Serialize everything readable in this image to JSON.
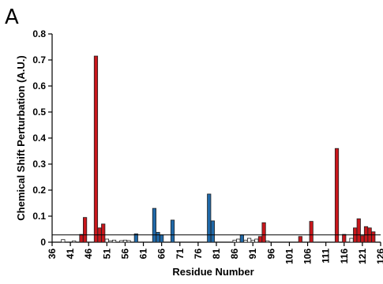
{
  "panel_label": "A",
  "chart_data": {
    "type": "bar",
    "xlabel": "Residue Number",
    "ylabel": "Chemical Shift Perturbation (A.U.)",
    "ylim": [
      0,
      0.8
    ],
    "xlim": [
      36,
      126
    ],
    "y_ticks": [
      "0",
      "0.1",
      "0.2",
      "0.3",
      "0.4",
      "0.5",
      "0.6",
      "0.7",
      "0.8"
    ],
    "x_ticks": [
      "36",
      "41",
      "46",
      "51",
      "56",
      "61",
      "66",
      "71",
      "76",
      "81",
      "86",
      "91",
      "96",
      "101",
      "106",
      "111",
      "116",
      "121",
      "126"
    ],
    "threshold": 0.028,
    "colors": {
      "red": "#c8161b",
      "blue": "#1f68a8",
      "white": "#ffffff"
    },
    "bars": [
      {
        "residue": 39,
        "value": 0.01,
        "color": "white"
      },
      {
        "residue": 42,
        "value": 0.005,
        "color": "white"
      },
      {
        "residue": 44,
        "value": 0.03,
        "color": "red"
      },
      {
        "residue": 45,
        "value": 0.095,
        "color": "red"
      },
      {
        "residue": 48,
        "value": 0.715,
        "color": "red"
      },
      {
        "residue": 49,
        "value": 0.055,
        "color": "red"
      },
      {
        "residue": 50,
        "value": 0.07,
        "color": "red"
      },
      {
        "residue": 51,
        "value": 0.012,
        "color": "white"
      },
      {
        "residue": 52,
        "value": 0.005,
        "color": "white"
      },
      {
        "residue": 53,
        "value": 0.008,
        "color": "white"
      },
      {
        "residue": 55,
        "value": 0.006,
        "color": "white"
      },
      {
        "residue": 56,
        "value": 0.008,
        "color": "white"
      },
      {
        "residue": 57,
        "value": 0.006,
        "color": "white"
      },
      {
        "residue": 59,
        "value": 0.032,
        "color": "blue"
      },
      {
        "residue": 64,
        "value": 0.13,
        "color": "blue"
      },
      {
        "residue": 65,
        "value": 0.038,
        "color": "blue"
      },
      {
        "residue": 66,
        "value": 0.028,
        "color": "blue"
      },
      {
        "residue": 69,
        "value": 0.085,
        "color": "blue"
      },
      {
        "residue": 79,
        "value": 0.185,
        "color": "blue"
      },
      {
        "residue": 80,
        "value": 0.082,
        "color": "blue"
      },
      {
        "residue": 86,
        "value": 0.008,
        "color": "white"
      },
      {
        "residue": 87,
        "value": 0.012,
        "color": "white"
      },
      {
        "residue": 88,
        "value": 0.028,
        "color": "blue"
      },
      {
        "residue": 89,
        "value": 0.008,
        "color": "white"
      },
      {
        "residue": 90,
        "value": 0.015,
        "color": "white"
      },
      {
        "residue": 91,
        "value": 0.007,
        "color": "white"
      },
      {
        "residue": 92,
        "value": 0.012,
        "color": "white"
      },
      {
        "residue": 93,
        "value": 0.022,
        "color": "red"
      },
      {
        "residue": 94,
        "value": 0.075,
        "color": "red"
      },
      {
        "residue": 95,
        "value": 0.005,
        "color": "white"
      },
      {
        "residue": 104,
        "value": 0.022,
        "color": "red"
      },
      {
        "residue": 107,
        "value": 0.08,
        "color": "red"
      },
      {
        "residue": 114,
        "value": 0.36,
        "color": "red"
      },
      {
        "residue": 116,
        "value": 0.03,
        "color": "red"
      },
      {
        "residue": 118,
        "value": 0.015,
        "color": "white"
      },
      {
        "residue": 119,
        "value": 0.055,
        "color": "red"
      },
      {
        "residue": 120,
        "value": 0.09,
        "color": "red"
      },
      {
        "residue": 121,
        "value": 0.025,
        "color": "red"
      },
      {
        "residue": 122,
        "value": 0.06,
        "color": "red"
      },
      {
        "residue": 123,
        "value": 0.055,
        "color": "red"
      },
      {
        "residue": 124,
        "value": 0.04,
        "color": "red"
      }
    ]
  }
}
